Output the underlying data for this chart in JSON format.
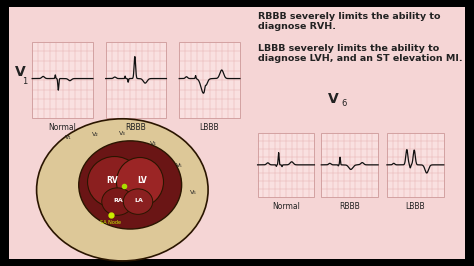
{
  "bg_color": "#f0c8c8",
  "inner_bg": "#f5d5d5",
  "grid_bg": "#f9e0e0",
  "grid_line_color": "#e0a0a0",
  "ekg_line_color": "#111111",
  "text_color": "#222222",
  "title_v1": "V",
  "title_v1_sub": "1",
  "title_v6": "V",
  "title_v6_sub": "6",
  "labels_top": [
    "Normal",
    "RBBB",
    "LBBB"
  ],
  "labels_bottom": [
    "Normal",
    "RBBB",
    "LBBB"
  ],
  "text1_line1": "RBBB severely limits the ability to",
  "text1_line2": "diagnose RVH.",
  "text2_line1": "LBBB severely limits the ability to",
  "text2_line2": "diagnose LVH, and an ST elevation MI.",
  "heart_outer_color": "#ddc898",
  "heart_inner_color": "#7a1a1a",
  "heart_mid_color": "#8b2020",
  "heart_outline": "#2a1500",
  "rv_label": "RV",
  "lv_label": "LV",
  "ra_label": "RA",
  "la_label": "LA",
  "sa_label": "SA Node",
  "lead_labels": [
    "V₁",
    "V₂",
    "V₃",
    "V₄",
    "V₅",
    "V₆"
  ],
  "border_color": "#000000",
  "box_border": "#cc9999"
}
